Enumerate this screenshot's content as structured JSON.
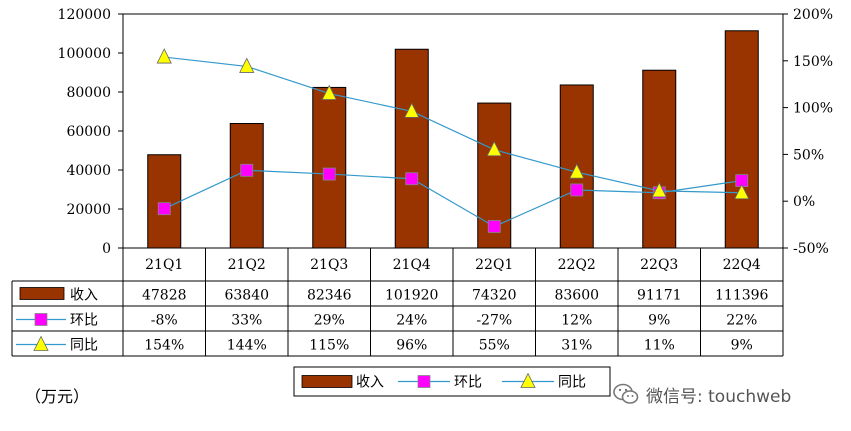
{
  "chart_data": {
    "type": "bar",
    "categories": [
      "21Q1",
      "21Q2",
      "21Q3",
      "21Q4",
      "22Q1",
      "22Q2",
      "22Q3",
      "22Q4"
    ],
    "series": [
      {
        "name": "收入",
        "kind": "bar",
        "axis": "left",
        "color": "#993300",
        "values": [
          47828,
          63840,
          82346,
          101920,
          74320,
          83600,
          91171,
          111396
        ],
        "display": [
          "47828",
          "63840",
          "82346",
          "101920",
          "74320",
          "83600",
          "91171",
          "111396"
        ]
      },
      {
        "name": "环比",
        "kind": "line",
        "axis": "right",
        "color": "#3399cc",
        "marker": "square",
        "marker_color": "#ff00ff",
        "values": [
          -8,
          33,
          29,
          24,
          -27,
          12,
          9,
          22
        ],
        "display": [
          "-8%",
          "33%",
          "29%",
          "24%",
          "-27%",
          "12%",
          "9%",
          "22%"
        ]
      },
      {
        "name": "同比",
        "kind": "line",
        "axis": "right",
        "color": "#3399cc",
        "marker": "triangle",
        "marker_color": "#ffff00",
        "values": [
          154,
          144,
          115,
          96,
          55,
          31,
          11,
          9
        ],
        "display": [
          "154%",
          "144%",
          "115%",
          "96%",
          "55%",
          "31%",
          "11%",
          "9%"
        ]
      }
    ],
    "yleft": {
      "lim": [
        0,
        120000
      ],
      "ticks": [
        "0",
        "20000",
        "40000",
        "60000",
        "80000",
        "100000",
        "120000"
      ]
    },
    "yright": {
      "lim": [
        -50,
        200
      ],
      "ticks": [
        "-50%",
        "0%",
        "50%",
        "100%",
        "150%",
        "200%"
      ]
    },
    "legend": {
      "placement": "bottom-center",
      "items": [
        "收入",
        "环比",
        "同比"
      ]
    },
    "grid": false,
    "data_table": true
  },
  "unit_label": "（万元）",
  "watermark": {
    "text": "微信号: touchweb",
    "icon": "wechat-icon"
  }
}
